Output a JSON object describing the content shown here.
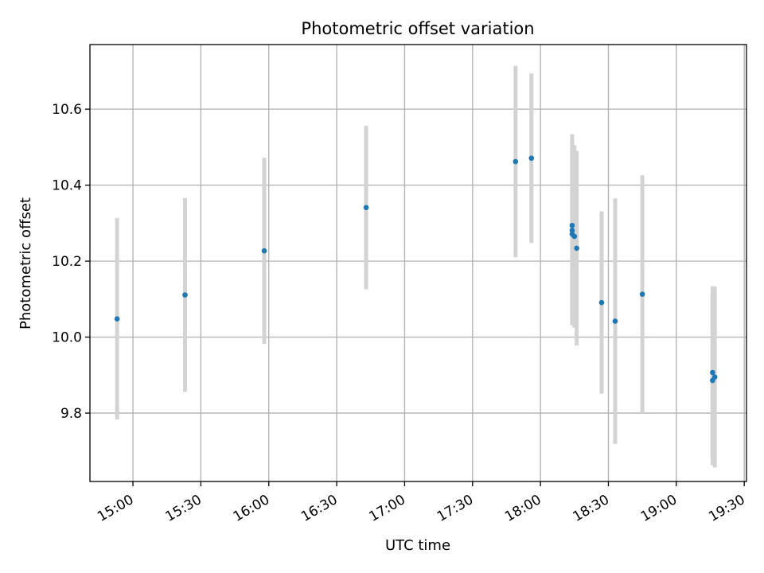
{
  "chart_data": {
    "type": "scatter",
    "title": "Photometric offset variation",
    "xlabel": "UTC time",
    "ylabel": "Photometric offset",
    "x_tick_labels": [
      "15:00",
      "15:30",
      "16:00",
      "16:30",
      "17:00",
      "17:30",
      "18:00",
      "18:30",
      "19:00",
      "19:30"
    ],
    "y_tick_labels": [
      "9.8",
      "10.0",
      "10.2",
      "10.4",
      "10.6"
    ],
    "xlim": [
      "14:41",
      "19:31"
    ],
    "ylim": [
      9.62,
      10.77
    ],
    "grid": true,
    "series": [
      {
        "marker_color": "#1f77b4",
        "errorbar_color": "#d3d3d3",
        "points": [
          {
            "x": "14:53",
            "y": 10.048,
            "err": 0.265
          },
          {
            "x": "15:23",
            "y": 10.111,
            "err": 0.255
          },
          {
            "x": "15:58",
            "y": 10.227,
            "err": 0.245
          },
          {
            "x": "16:43",
            "y": 10.341,
            "err": 0.215
          },
          {
            "x": "17:49",
            "y": 10.462,
            "err": 0.252
          },
          {
            "x": "17:56",
            "y": 10.471,
            "err": 0.223
          },
          {
            "x": "18:14",
            "y": 10.294,
            "err": 0.24
          },
          {
            "x": "18:14",
            "y": 10.281,
            "err": 0.24
          },
          {
            "x": "18:14",
            "y": 10.271,
            "err": 0.24
          },
          {
            "x": "18:15",
            "y": 10.265,
            "err": 0.24
          },
          {
            "x": "18:16",
            "y": 10.234,
            "err": 0.256
          },
          {
            "x": "18:27",
            "y": 10.091,
            "err": 0.24
          },
          {
            "x": "18:33",
            "y": 10.042,
            "err": 0.323
          },
          {
            "x": "18:45",
            "y": 10.113,
            "err": 0.313
          },
          {
            "x": "19:16",
            "y": 9.886,
            "err": 0.223
          },
          {
            "x": "19:16",
            "y": 9.907,
            "err": 0.227
          },
          {
            "x": "19:17",
            "y": 9.895,
            "err": 0.238
          }
        ]
      }
    ]
  }
}
